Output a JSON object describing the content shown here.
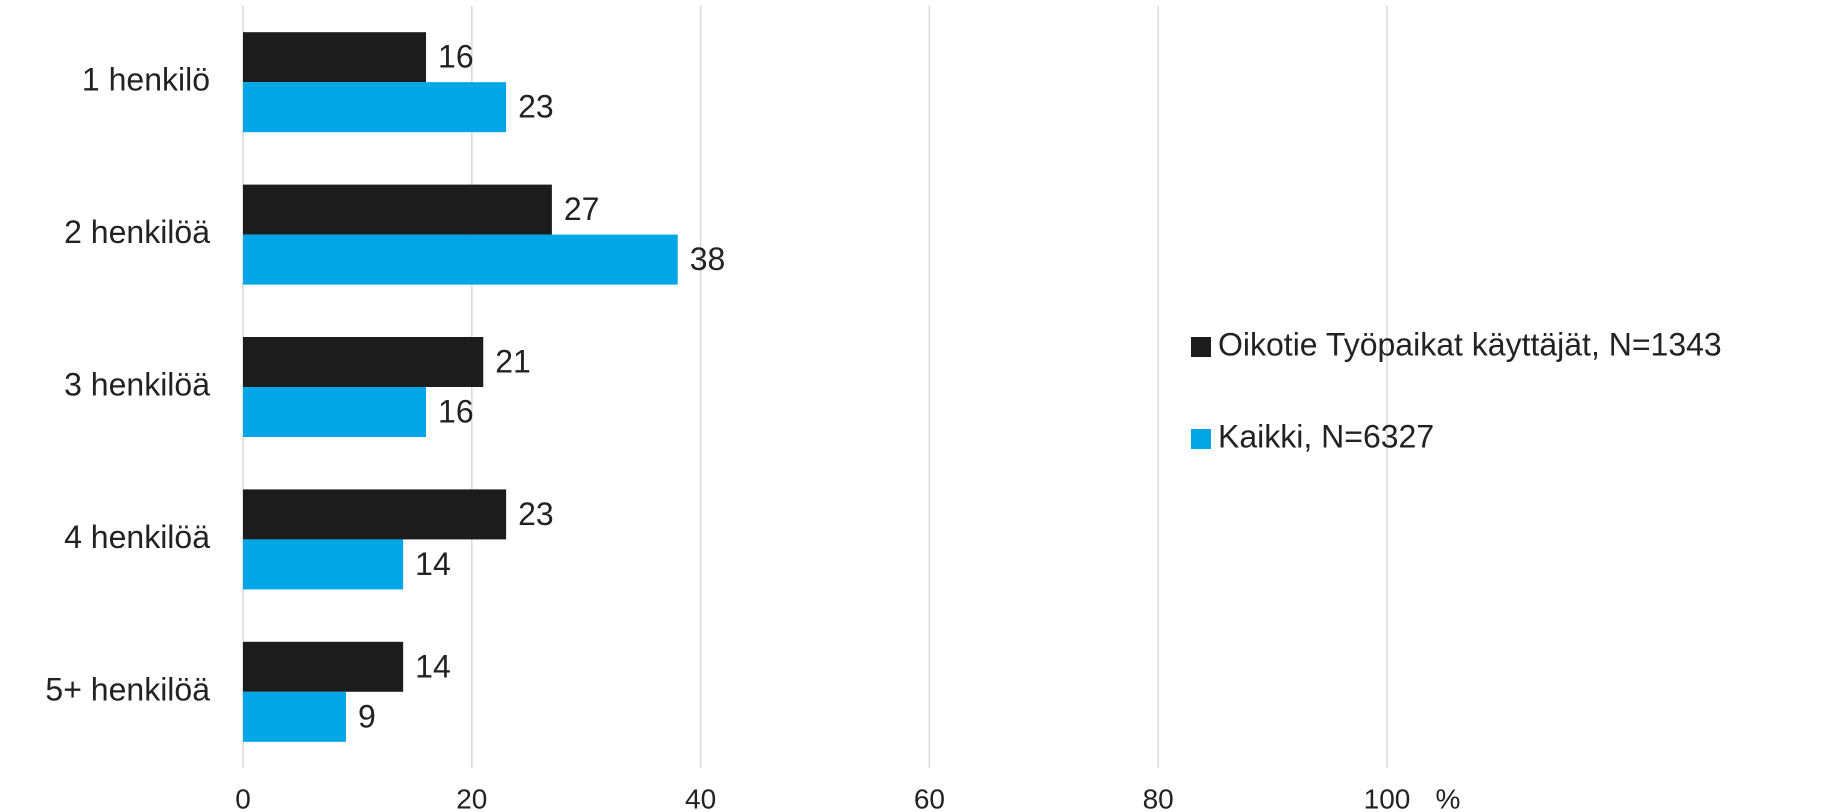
{
  "chart_data": {
    "type": "bar",
    "orientation": "horizontal",
    "categories": [
      "1 henkilö",
      "2 henkilöä",
      "3 henkilöä",
      "4 henkilöä",
      "5+ henkilöä"
    ],
    "series": [
      {
        "name": "Oikotie Työpaikat käyttäjät, N=1343",
        "color": "#1c1c1c",
        "values": [
          16,
          27,
          21,
          23,
          14
        ]
      },
      {
        "name": "Kaikki, N=6327",
        "color": "#00a6e6",
        "values": [
          23,
          38,
          16,
          14,
          9
        ]
      }
    ],
    "x_label": "%",
    "xlim": [
      0,
      100
    ],
    "xticks": [
      0,
      20,
      40,
      60,
      80,
      100
    ],
    "grid": true,
    "legend": "right"
  }
}
